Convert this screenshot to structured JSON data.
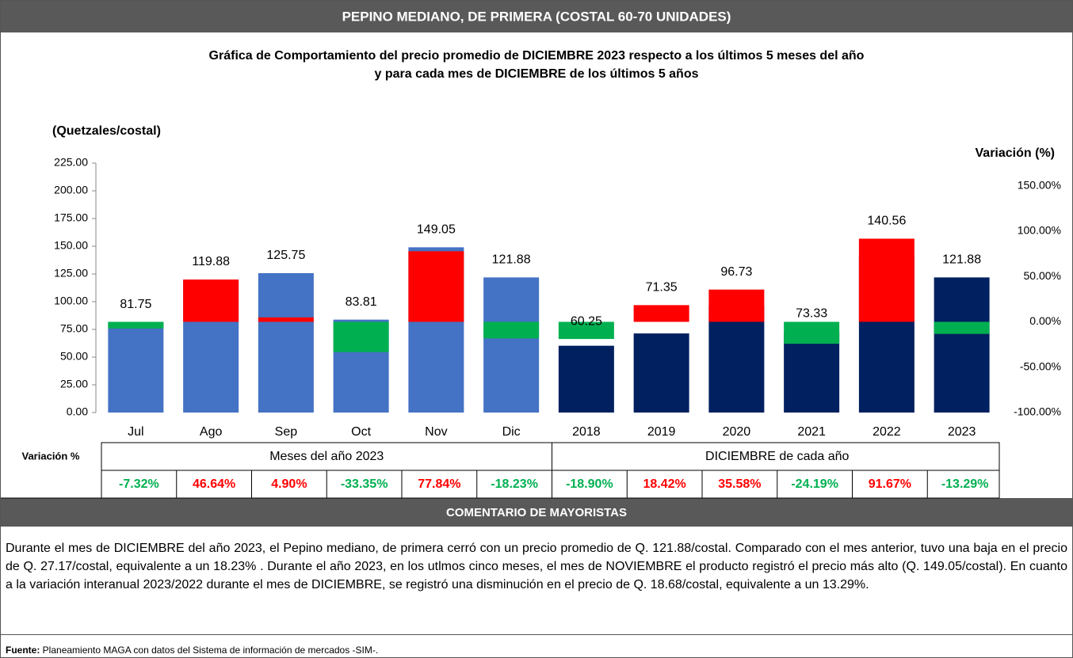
{
  "header": {
    "title": "PEPINO MEDIANO, DE PRIMERA (COSTAL 60-70 UNIDADES)"
  },
  "chart_data": {
    "type": "bar",
    "title": "Gráfica de Comportamiento del precio promedio de DICIEMBRE 2023 respecto a los últimos 5 meses del año",
    "subtitle": "y para cada mes de DICIEMBRE de los últimos 5 años",
    "y_label": "(Quetzales/costal)",
    "y2_label": "Variación (%)",
    "categories": [
      "Jul",
      "Ago",
      "Sep",
      "Oct",
      "Nov",
      "Dic",
      "2018",
      "2019",
      "2020",
      "2021",
      "2022",
      "2023"
    ],
    "series": [
      {
        "name": "Meses del año 2023",
        "color": "#4472c4",
        "values": [
          81.75,
          119.88,
          125.75,
          83.81,
          149.05,
          121.88,
          null,
          null,
          null,
          null,
          null,
          null
        ]
      },
      {
        "name": "DICIEMBRE de cada año",
        "color": "#002060",
        "values": [
          null,
          null,
          null,
          null,
          null,
          null,
          60.25,
          71.35,
          96.73,
          73.33,
          140.56,
          121.88
        ]
      }
    ],
    "variation": {
      "name": "Variación %",
      "axis": "y2",
      "positive_color": "#ff0000",
      "negative_color": "#00b050",
      "values": [
        -7.32,
        46.64,
        4.9,
        -33.35,
        77.84,
        -18.23,
        -18.9,
        18.42,
        35.58,
        -24.19,
        91.67,
        -13.29
      ],
      "value_labels": [
        "-7.32%",
        "46.64%",
        "4.90%",
        "-33.35%",
        "77.84%",
        "-18.23%",
        "-18.90%",
        "18.42%",
        "35.58%",
        "-24.19%",
        "91.67%",
        "-13.29%"
      ]
    },
    "ylim": [
      0,
      225
    ],
    "yticks": [
      {
        "value": 0,
        "label": "0.00"
      },
      {
        "value": 25,
        "label": "25.00"
      },
      {
        "value": 50,
        "label": "50.00"
      },
      {
        "value": 75,
        "label": "75.00"
      },
      {
        "value": 100,
        "label": "100.00"
      },
      {
        "value": 125,
        "label": "125.00"
      },
      {
        "value": 150,
        "label": "150.00"
      },
      {
        "value": 175,
        "label": "175.00"
      },
      {
        "value": 200,
        "label": "200.00"
      },
      {
        "value": 225,
        "label": "225.00"
      }
    ],
    "y2lim": [
      -100,
      175
    ],
    "y2ticks": [
      {
        "value": -100,
        "label": "-100.00%"
      },
      {
        "value": -50,
        "label": "-50.00%"
      },
      {
        "value": 0,
        "label": "0.00%"
      },
      {
        "value": 50,
        "label": "50.00%"
      },
      {
        "value": 100,
        "label": "100.00%"
      },
      {
        "value": 150,
        "label": "150.00%"
      }
    ]
  },
  "comment": {
    "title": "COMENTARIO DE MAYORISTAS",
    "text": "Durante el mes de DICIEMBRE del año 2023, el Pepino mediano, de primera cerró con un precio promedio de Q. 121.88/costal. Comparado con el mes anterior, tuvo una baja en el precio de Q. 27.17/costal, equivalente a un 18.23% . Durante el año 2023, en los utlmos cinco meses, el mes de NOVIEMBRE el producto registró el precio más alto (Q. 149.05/costal). En cuanto a la variación interanual 2023/2022 durante el mes de DICIEMBRE, se registró una disminución en el precio de Q. 18.68/costal, equivalente a un 13.29%.",
    "source_label": "Fuente:",
    "source": " Planeamiento MAGA con datos del Sistema de información de mercados -SIM-."
  }
}
